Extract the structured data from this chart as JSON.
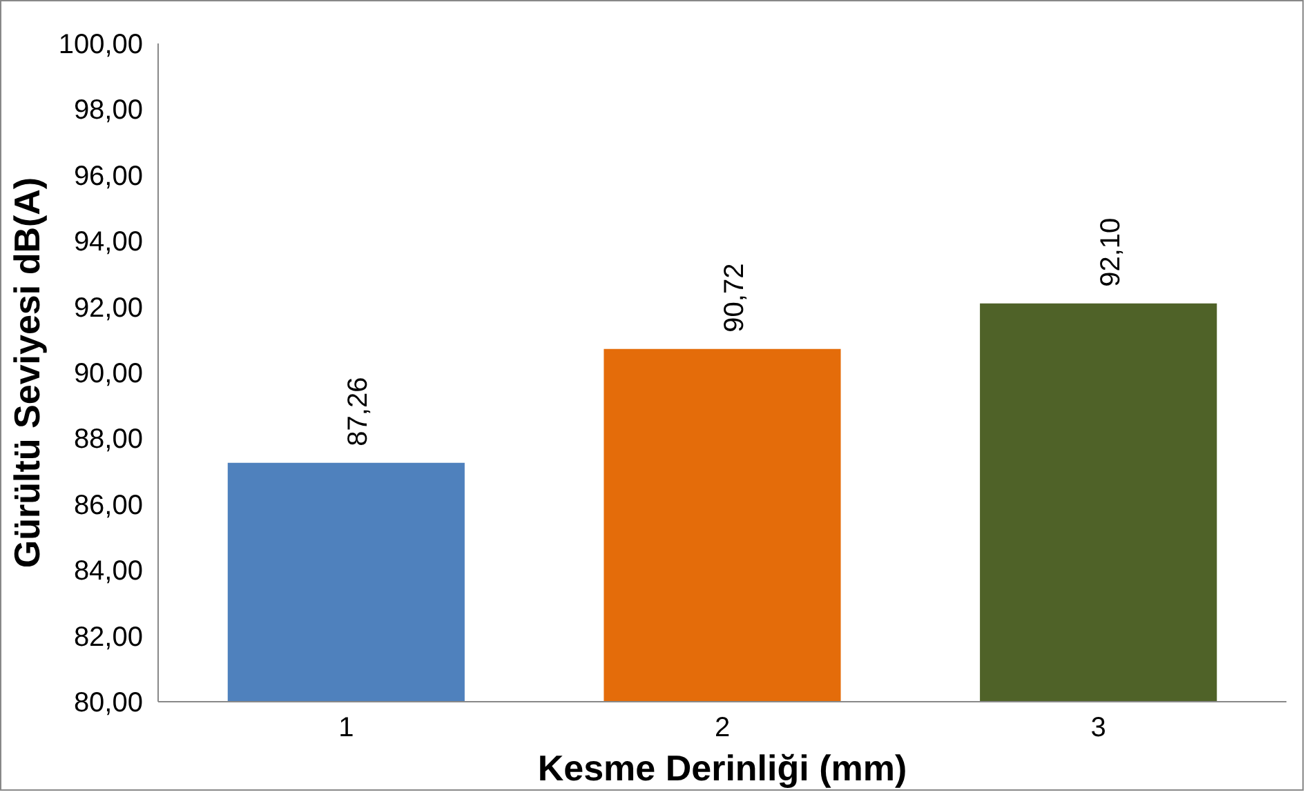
{
  "chart_data": {
    "type": "bar",
    "xlabel": "Kesme Derinliği (mm)",
    "ylabel": "Gürültü Seviyesi dB(A)",
    "categories": [
      "1",
      "2",
      "3"
    ],
    "values": [
      87.26,
      90.72,
      92.1
    ],
    "colors": [
      "#4f81bd",
      "#e46c0a",
      "#4f6228"
    ],
    "value_labels": [
      "87,26",
      "90,72",
      "92,10"
    ],
    "ylim": [
      80,
      100
    ],
    "yticks": [
      {
        "value": 80,
        "label": "80,00"
      },
      {
        "value": 82,
        "label": "82,00"
      },
      {
        "value": 84,
        "label": "84,00"
      },
      {
        "value": 86,
        "label": "86,00"
      },
      {
        "value": 88,
        "label": "88,00"
      },
      {
        "value": 90,
        "label": "90,00"
      },
      {
        "value": 92,
        "label": "92,00"
      },
      {
        "value": 94,
        "label": "94,00"
      },
      {
        "value": 96,
        "label": "96,00"
      },
      {
        "value": 98,
        "label": "98,00"
      },
      {
        "value": 100,
        "label": "100,00"
      }
    ],
    "grid": false
  }
}
